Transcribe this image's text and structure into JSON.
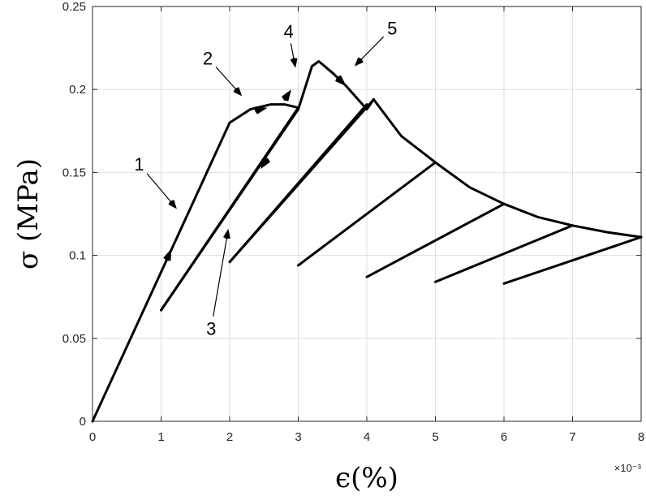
{
  "chart_data": {
    "type": "line",
    "title": "",
    "xlabel": "ϵ(%)",
    "ylabel": "σ (MPa)",
    "x_exponent_label": "×10⁻³",
    "xlim": [
      0,
      8
    ],
    "ylim": [
      0,
      0.25
    ],
    "x_ticks": [
      "0",
      "1",
      "2",
      "3",
      "4",
      "5",
      "6",
      "7",
      "8"
    ],
    "y_ticks": [
      "0",
      "0.05",
      "0.1",
      "0.15",
      "0.2",
      "0.25"
    ],
    "x_tick_values": [
      0,
      1,
      2,
      3,
      4,
      5,
      6,
      7,
      8
    ],
    "y_tick_values": [
      0,
      0.05,
      0.1,
      0.15,
      0.2,
      0.25
    ],
    "grid": true,
    "series": [
      {
        "x": [
          0,
          1.3,
          2.0,
          2.3,
          2.6,
          2.8,
          3.0
        ],
        "y": [
          0,
          0.117,
          0.18,
          0.188,
          0.191,
          0.191,
          0.189
        ]
      },
      {
        "x": [
          3.0,
          1.0
        ],
        "y": [
          0.189,
          0.067
        ]
      },
      {
        "x": [
          1.0,
          3.0,
          3.2,
          3.3,
          3.5,
          3.7,
          4.0,
          4.1
        ],
        "y": [
          0.067,
          0.188,
          0.214,
          0.217,
          0.21,
          0.202,
          0.188,
          0.194
        ]
      },
      {
        "x": [
          4.1,
          2.0
        ],
        "y": [
          0.194,
          0.096
        ]
      },
      {
        "x": [
          2.0,
          4.0
        ],
        "y": [
          0.096,
          0.191
        ]
      },
      {
        "x": [
          4.1,
          4.5,
          5.0,
          5.5,
          6.0,
          6.5,
          7.0,
          7.5,
          8.0
        ],
        "y": [
          0.194,
          0.172,
          0.156,
          0.141,
          0.131,
          0.123,
          0.118,
          0.114,
          0.111
        ]
      },
      {
        "x": [
          3.0,
          5.0
        ],
        "y": [
          0.094,
          0.156
        ]
      },
      {
        "x": [
          4.0,
          6.0
        ],
        "y": [
          0.087,
          0.131
        ]
      },
      {
        "x": [
          5.0,
          7.0
        ],
        "y": [
          0.084,
          0.118
        ]
      },
      {
        "x": [
          6.0,
          8.0
        ],
        "y": [
          0.083,
          0.111
        ]
      }
    ],
    "annotations": [
      {
        "text": "1",
        "label_x": 0.68,
        "label_y": 0.155,
        "target_x": 1.23,
        "target_y": 0.128
      },
      {
        "text": "2",
        "label_x": 1.68,
        "label_y": 0.219,
        "target_x": 2.18,
        "target_y": 0.196
      },
      {
        "text": "3",
        "label_x": 1.73,
        "label_y": 0.056,
        "target_x": 1.98,
        "target_y": 0.116
      },
      {
        "text": "4",
        "label_x": 2.86,
        "label_y": 0.235,
        "target_x": 2.96,
        "target_y": 0.213
      },
      {
        "text": "5",
        "label_x": 4.37,
        "label_y": 0.237,
        "target_x": 3.82,
        "target_y": 0.214
      }
    ],
    "direction_arrows": [
      {
        "x": 1.15,
        "y": 0.104,
        "dx": 1,
        "dy": 0.1
      },
      {
        "x": 2.55,
        "y": 0.189,
        "dx": 1,
        "dy": 0.01
      },
      {
        "x": 2.45,
        "y": 0.152,
        "dx": -1,
        "dy": -0.061
      },
      {
        "x": 2.9,
        "y": 0.2,
        "dx": 1,
        "dy": 0.06
      },
      {
        "x": 3.7,
        "y": 0.202,
        "dx": 1,
        "dy": -0.04
      }
    ]
  }
}
